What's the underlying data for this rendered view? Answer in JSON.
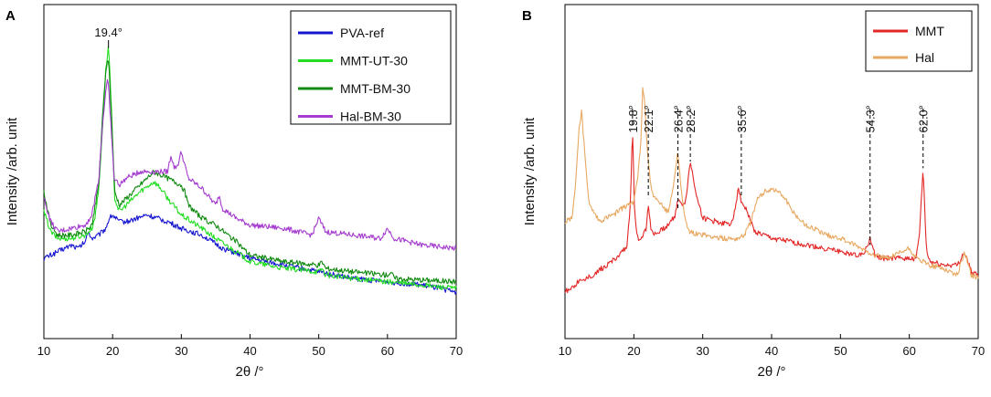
{
  "chart_data": [
    {
      "panel": "A",
      "type": "line",
      "xlabel": "2θ /°",
      "ylabel": "Intensity /arb. unit",
      "xlim": [
        10,
        70
      ],
      "ylim": [
        0,
        100
      ],
      "xticks": [
        10,
        20,
        30,
        40,
        50,
        60,
        70
      ],
      "xtick_labels": [
        "10",
        "20",
        "30",
        "40",
        "50",
        "60",
        "70"
      ],
      "legend_position": "top-right",
      "grid": false,
      "annotations": [
        {
          "text": "19.4°",
          "x": 19.4,
          "y": 87
        }
      ],
      "series": [
        {
          "name": "PVA-ref",
          "color": "#1515d0",
          "x": [
            10,
            12,
            14,
            15,
            16,
            16.5,
            17,
            18,
            19,
            19.5,
            20,
            21,
            22,
            25,
            28,
            30,
            33,
            36,
            40,
            45,
            50,
            55,
            60,
            65,
            70
          ],
          "y": [
            24,
            26,
            28,
            27,
            29,
            32,
            30,
            31,
            33,
            36,
            37,
            35,
            35,
            37,
            35,
            33,
            31,
            27,
            24,
            22,
            20,
            18,
            17,
            16,
            14
          ]
        },
        {
          "name": "MMT-UT-30",
          "color": "#22dd22",
          "x": [
            10,
            11,
            12,
            14,
            16,
            17,
            17.5,
            18,
            18.5,
            19,
            19.4,
            19.8,
            20.3,
            21,
            22,
            24,
            26,
            27,
            28,
            30,
            33,
            35,
            38,
            40,
            45,
            50,
            50.5,
            51,
            55,
            60,
            70
          ],
          "y": [
            38,
            32,
            30,
            30,
            31,
            33,
            37,
            45,
            62,
            80,
            88,
            70,
            42,
            38,
            40,
            44,
            47,
            45,
            42,
            37,
            33,
            30,
            26,
            23,
            21,
            20,
            21,
            19,
            18,
            17,
            15
          ]
        },
        {
          "name": "MMT-BM-30",
          "color": "#0f8a0f",
          "x": [
            10,
            11,
            12,
            14,
            16,
            17,
            18,
            18.5,
            19,
            19.4,
            19.8,
            20.3,
            21,
            22,
            24,
            26,
            28,
            30,
            30.5,
            31,
            33,
            35,
            38,
            40,
            45,
            50,
            50.5,
            51,
            55,
            60,
            60.5,
            61,
            70
          ],
          "y": [
            44,
            34,
            31,
            31,
            32,
            34,
            46,
            65,
            80,
            84,
            68,
            44,
            40,
            42,
            46,
            50,
            48,
            46,
            44,
            40,
            36,
            34,
            29,
            25,
            23,
            22,
            23,
            21,
            20,
            19,
            20,
            18,
            17
          ]
        },
        {
          "name": "Hal-BM-30",
          "color": "#a53ccf",
          "x": [
            10,
            11,
            12,
            14,
            16,
            17,
            18,
            18.5,
            19,
            19.3,
            19.7,
            20.2,
            21,
            22,
            24,
            26,
            28,
            28.5,
            29,
            29.5,
            30,
            30.5,
            31,
            33,
            35,
            35.5,
            36,
            38,
            40,
            45,
            49,
            50,
            51,
            55,
            59,
            60,
            61,
            65,
            70
          ],
          "y": [
            42,
            35,
            32,
            33,
            34,
            37,
            48,
            63,
            74,
            78,
            66,
            48,
            46,
            48,
            50,
            50,
            50,
            55,
            51,
            52,
            56,
            52,
            48,
            45,
            40,
            43,
            39,
            36,
            34,
            33,
            31,
            36,
            32,
            31,
            30,
            33,
            30,
            28,
            27
          ]
        }
      ]
    },
    {
      "panel": "B",
      "type": "line",
      "xlabel": "2θ /°",
      "ylabel": "Intensity /arb. unit",
      "xlim": [
        10,
        70
      ],
      "ylim": [
        0,
        100
      ],
      "xticks": [
        10,
        20,
        30,
        40,
        50,
        60,
        70
      ],
      "xtick_labels": [
        "10",
        "20",
        "30",
        "40",
        "50",
        "60",
        "70"
      ],
      "legend_position": "top-right",
      "grid": false,
      "annotations": [
        {
          "text": "19.8°",
          "x": 19.8,
          "y": 64
        },
        {
          "text": "22.1°",
          "x": 22.1,
          "y": 42
        },
        {
          "text": "26.4°",
          "x": 26.4,
          "y": 39
        },
        {
          "text": "28.2°",
          "x": 28.2,
          "y": 53
        },
        {
          "text": "35.6°",
          "x": 35.6,
          "y": 42
        },
        {
          "text": "54.3°",
          "x": 54.3,
          "y": 28
        },
        {
          "text": "62.0°",
          "x": 62.0,
          "y": 51
        }
      ],
      "series": [
        {
          "name": "MMT",
          "color": "#e32626",
          "x": [
            10,
            12,
            14,
            16,
            18,
            19,
            19.5,
            19.8,
            20.1,
            20.5,
            21,
            21.8,
            22.1,
            22.5,
            23,
            25,
            26,
            26.4,
            26.8,
            27.5,
            28.2,
            29,
            30,
            32,
            34,
            34.5,
            35.2,
            35.6,
            36.5,
            37.5,
            40,
            45,
            50,
            53,
            53.8,
            54.3,
            55,
            56,
            58,
            60,
            61,
            61.5,
            62,
            62.5,
            63,
            65,
            67,
            68,
            69,
            70
          ],
          "y": [
            14,
            17,
            19,
            22,
            25,
            28,
            40,
            64,
            38,
            30,
            30,
            33,
            40,
            33,
            31,
            34,
            37,
            42,
            40,
            41,
            53,
            44,
            36,
            35,
            34,
            37,
            45,
            41,
            38,
            32,
            30,
            28,
            26,
            25,
            27,
            30,
            25,
            24,
            24,
            24,
            24,
            32,
            51,
            26,
            23,
            22,
            22,
            26,
            20,
            19
          ]
        },
        {
          "name": "Hal",
          "color": "#e8a860",
          "x": [
            10,
            11,
            11.5,
            12,
            12.4,
            12.9,
            13.5,
            15,
            17,
            19,
            20,
            20.5,
            21,
            21.3,
            21.6,
            22,
            22.5,
            23,
            24,
            25,
            25.6,
            26,
            26.4,
            26.8,
            27.5,
            28,
            30,
            33,
            35,
            36,
            37,
            38,
            39,
            40,
            41,
            42,
            43,
            45,
            48,
            50,
            53,
            55,
            57,
            59,
            60,
            61,
            62,
            63,
            65,
            66,
            67,
            68,
            68.5,
            69,
            70
          ],
          "y": [
            35,
            36,
            45,
            62,
            68,
            55,
            40,
            35,
            37,
            40,
            41,
            47,
            58,
            76,
            70,
            55,
            45,
            42,
            40,
            38,
            44,
            50,
            56,
            46,
            35,
            32,
            31,
            30,
            30,
            31,
            35,
            42,
            44,
            45,
            44,
            42,
            38,
            34,
            31,
            30,
            27,
            25,
            24,
            26,
            27,
            24,
            23,
            22,
            21,
            20,
            19,
            26,
            23,
            19,
            18
          ]
        }
      ]
    }
  ]
}
